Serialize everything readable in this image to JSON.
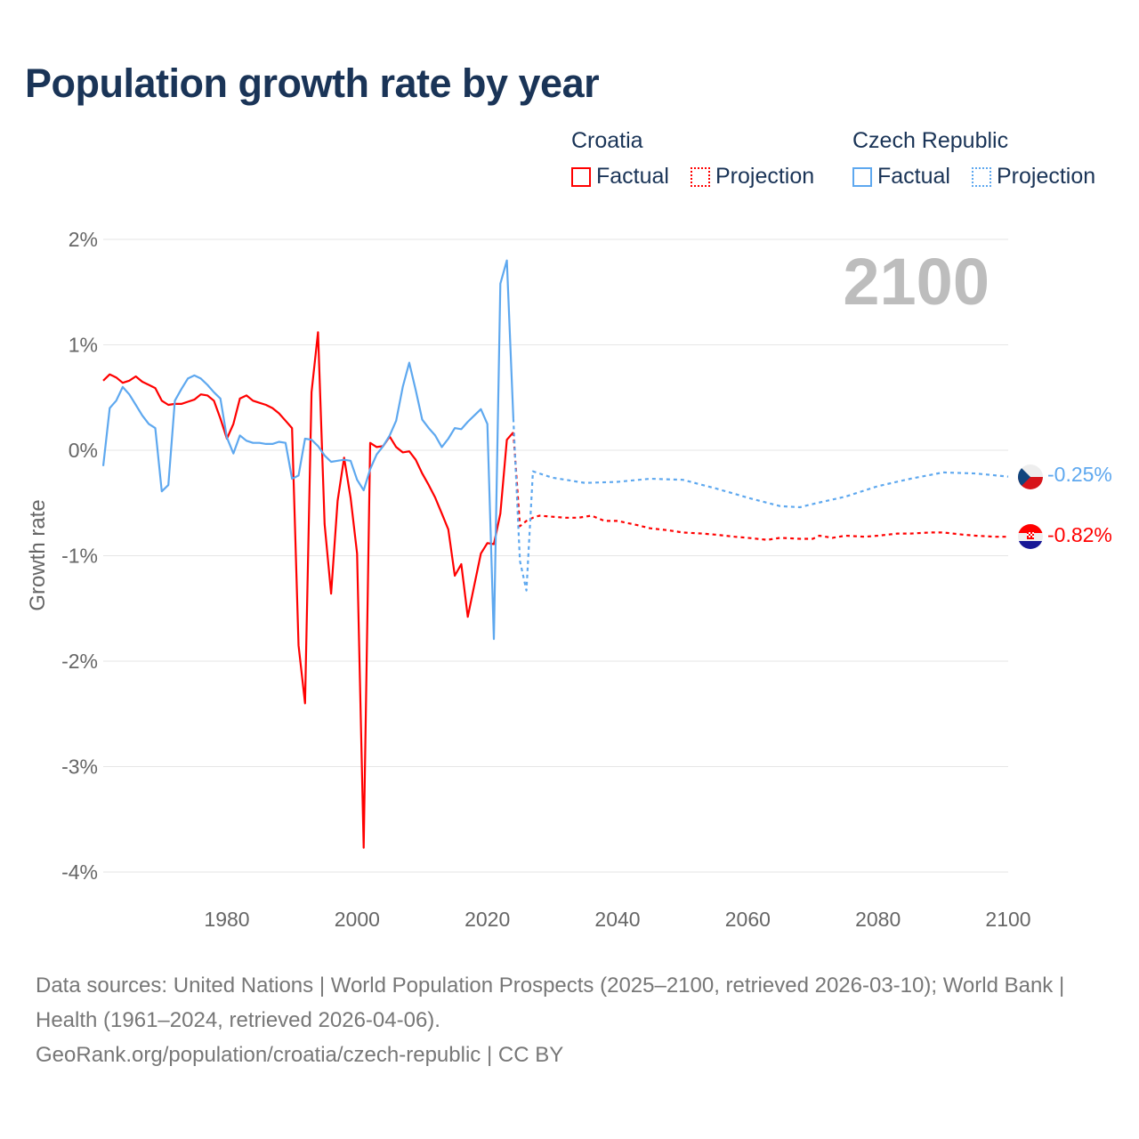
{
  "title": "Population growth rate by year",
  "legend": {
    "groups": [
      {
        "country": "Croatia",
        "factual": "Factual",
        "projection": "Projection",
        "color": "#ff0000"
      },
      {
        "country": "Czech Republic",
        "factual": "Factual",
        "projection": "Projection",
        "color": "#5ea8ef"
      }
    ]
  },
  "year_display": "2100",
  "end_labels": {
    "czech": "-0.25%",
    "croatia": "-0.82%"
  },
  "footer": {
    "sources": "Data sources: United Nations | World Population Prospects (2025–2100, retrieved 2026-03-10); World Bank | Health (1961–2024, retrieved 2026-04-06).",
    "link": "GeoRank.org/population/croatia/czech-republic | CC BY"
  },
  "chart_data": {
    "type": "line",
    "title": "Population growth rate by year",
    "xlabel": "",
    "ylabel": "Growth rate",
    "xlim": [
      1961,
      2100
    ],
    "ylim": [
      -4,
      2
    ],
    "x_ticks": [
      1980,
      2000,
      2020,
      2040,
      2060,
      2080,
      2100
    ],
    "y_ticks": [
      2,
      1,
      0,
      -1,
      -2,
      -3,
      -4
    ],
    "y_tick_labels": [
      "2%",
      "1%",
      "0%",
      "-1%",
      "-2%",
      "-3%",
      "-4%"
    ],
    "x_tick_labels": [
      "1980",
      "2000",
      "2020",
      "2040",
      "2060",
      "2080",
      "2100"
    ],
    "grid": true,
    "legend_position": "top-right",
    "series": [
      {
        "name": "Croatia Factual",
        "color": "#ff0000",
        "dashed": false,
        "x": [
          1961,
          1962,
          1963,
          1964,
          1965,
          1966,
          1967,
          1968,
          1969,
          1970,
          1971,
          1972,
          1973,
          1974,
          1975,
          1976,
          1977,
          1978,
          1979,
          1980,
          1981,
          1982,
          1983,
          1984,
          1985,
          1986,
          1987,
          1988,
          1989,
          1990,
          1991,
          1992,
          1993,
          1994,
          1995,
          1996,
          1997,
          1998,
          1999,
          2000,
          2001,
          2002,
          2003,
          2004,
          2005,
          2006,
          2007,
          2008,
          2009,
          2010,
          2011,
          2012,
          2013,
          2014,
          2015,
          2016,
          2017,
          2018,
          2019,
          2020,
          2021,
          2022,
          2023,
          2024
        ],
        "y": [
          0.66,
          0.72,
          0.69,
          0.64,
          0.66,
          0.7,
          0.65,
          0.62,
          0.59,
          0.47,
          0.43,
          0.44,
          0.44,
          0.46,
          0.48,
          0.53,
          0.52,
          0.47,
          0.3,
          0.11,
          0.25,
          0.49,
          0.52,
          0.47,
          0.45,
          0.43,
          0.4,
          0.35,
          0.28,
          0.21,
          -1.85,
          -2.4,
          0.55,
          1.12,
          -0.7,
          -1.36,
          -0.48,
          -0.07,
          -0.45,
          -0.98,
          -3.77,
          0.07,
          0.03,
          0.04,
          0.13,
          0.03,
          -0.02,
          -0.01,
          -0.09,
          -0.22,
          -0.33,
          -0.45,
          -0.6,
          -0.75,
          -1.19,
          -1.08,
          -1.58,
          -1.28,
          -0.98,
          -0.88,
          -0.89,
          -0.6,
          0.1,
          0.17
        ]
      },
      {
        "name": "Croatia Projection",
        "color": "#ff0000",
        "dashed": true,
        "x": [
          2024,
          2025,
          2026,
          2027,
          2028,
          2030,
          2032,
          2034,
          2036,
          2038,
          2040,
          2043,
          2045,
          2048,
          2050,
          2053,
          2055,
          2058,
          2060,
          2063,
          2065,
          2068,
          2070,
          2071,
          2073,
          2075,
          2078,
          2080,
          2083,
          2085,
          2088,
          2090,
          2093,
          2095,
          2098,
          2100
        ],
        "y": [
          0.17,
          -0.72,
          -0.67,
          -0.64,
          -0.62,
          -0.63,
          -0.64,
          -0.64,
          -0.62,
          -0.67,
          -0.67,
          -0.71,
          -0.74,
          -0.76,
          -0.78,
          -0.79,
          -0.8,
          -0.82,
          -0.83,
          -0.85,
          -0.83,
          -0.84,
          -0.84,
          -0.81,
          -0.83,
          -0.81,
          -0.82,
          -0.81,
          -0.79,
          -0.79,
          -0.78,
          -0.78,
          -0.8,
          -0.81,
          -0.82,
          -0.82
        ]
      },
      {
        "name": "Czech Republic Factual",
        "color": "#5ea8ef",
        "dashed": false,
        "x": [
          1961,
          1962,
          1963,
          1964,
          1965,
          1966,
          1967,
          1968,
          1969,
          1970,
          1971,
          1972,
          1973,
          1974,
          1975,
          1976,
          1977,
          1978,
          1979,
          1980,
          1981,
          1982,
          1983,
          1984,
          1985,
          1986,
          1987,
          1988,
          1989,
          1990,
          1991,
          1992,
          1993,
          1994,
          1995,
          1996,
          1997,
          1998,
          1999,
          2000,
          2001,
          2002,
          2003,
          2004,
          2005,
          2006,
          2007,
          2008,
          2009,
          2010,
          2011,
          2012,
          2013,
          2014,
          2015,
          2016,
          2017,
          2018,
          2019,
          2020,
          2021,
          2022,
          2023,
          2024
        ],
        "y": [
          -0.15,
          0.4,
          0.47,
          0.6,
          0.53,
          0.43,
          0.33,
          0.25,
          0.21,
          -0.39,
          -0.33,
          0.47,
          0.58,
          0.68,
          0.71,
          0.68,
          0.62,
          0.55,
          0.49,
          0.12,
          -0.03,
          0.14,
          0.09,
          0.07,
          0.07,
          0.06,
          0.06,
          0.08,
          0.07,
          -0.27,
          -0.24,
          0.11,
          0.1,
          0.04,
          -0.05,
          -0.11,
          -0.1,
          -0.09,
          -0.1,
          -0.28,
          -0.38,
          -0.18,
          -0.04,
          0.04,
          0.14,
          0.28,
          0.6,
          0.83,
          0.57,
          0.29,
          0.21,
          0.14,
          0.03,
          0.11,
          0.21,
          0.2,
          0.27,
          0.33,
          0.39,
          0.25,
          -1.79,
          1.58,
          1.8,
          0.3
        ]
      },
      {
        "name": "Czech Republic Projection",
        "color": "#5ea8ef",
        "dashed": true,
        "x": [
          2024,
          2025,
          2026,
          2027,
          2028,
          2030,
          2035,
          2040,
          2045,
          2050,
          2055,
          2060,
          2065,
          2068,
          2070,
          2075,
          2080,
          2085,
          2090,
          2095,
          2100
        ],
        "y": [
          0.3,
          -1.05,
          -1.33,
          -0.2,
          -0.22,
          -0.26,
          -0.31,
          -0.3,
          -0.27,
          -0.28,
          -0.36,
          -0.45,
          -0.53,
          -0.54,
          -0.51,
          -0.44,
          -0.34,
          -0.27,
          -0.21,
          -0.22,
          -0.25
        ]
      }
    ]
  }
}
